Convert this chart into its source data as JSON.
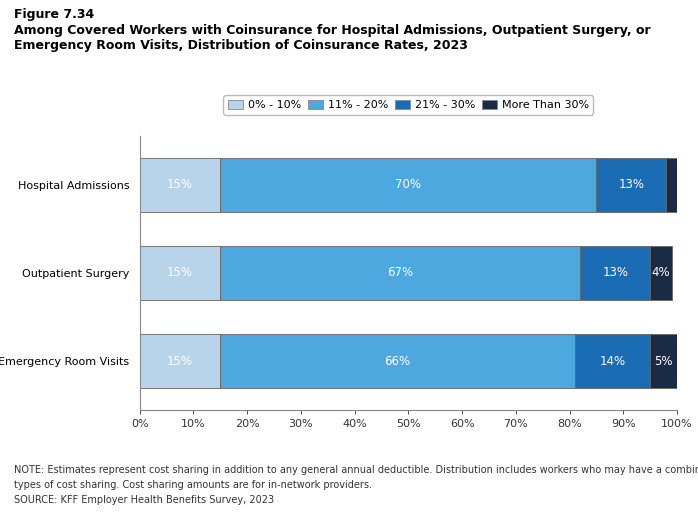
{
  "title_line1": "Figure 7.34",
  "title_line2": "Among Covered Workers with Coinsurance for Hospital Admissions, Outpatient Surgery, or",
  "title_line3": "Emergency Room Visits, Distribution of Coinsurance Rates, 2023",
  "categories": [
    "Hospital Admissions",
    "Outpatient Surgery",
    "Emergency Room Visits"
  ],
  "segments": {
    "0%-10%": [
      15,
      15,
      15
    ],
    "11%-20%": [
      70,
      67,
      66
    ],
    "21%-30%": [
      13,
      13,
      14
    ],
    "More Than 30%": [
      2,
      4,
      5
    ]
  },
  "labels": {
    "0%-10%": [
      "15%",
      "15%",
      "15%"
    ],
    "11%-20%": [
      "70%",
      "67%",
      "66%"
    ],
    "21%-30%": [
      "13%",
      "13%",
      "14%"
    ],
    "More Than 30%": [
      "",
      "4%",
      "5%"
    ]
  },
  "colors": {
    "0%-10%": "#b8d4ea",
    "11%-20%": "#4da8e0",
    "21%-30%": "#1a6db5",
    "More Than 30%": "#1a2b45"
  },
  "legend_labels": [
    "0% - 10%",
    "11% - 20%",
    "21% - 30%",
    "More Than 30%"
  ],
  "note_line1": "NOTE: Estimates represent cost sharing in addition to any general annual deductible. Distribution includes workers who may have a combination of",
  "note_line2": "types of cost sharing. Cost sharing amounts are for in-network providers.",
  "note_line3": "SOURCE: KFF Employer Health Benefits Survey, 2023",
  "bar_height": 0.62,
  "background_color": "#ffffff"
}
